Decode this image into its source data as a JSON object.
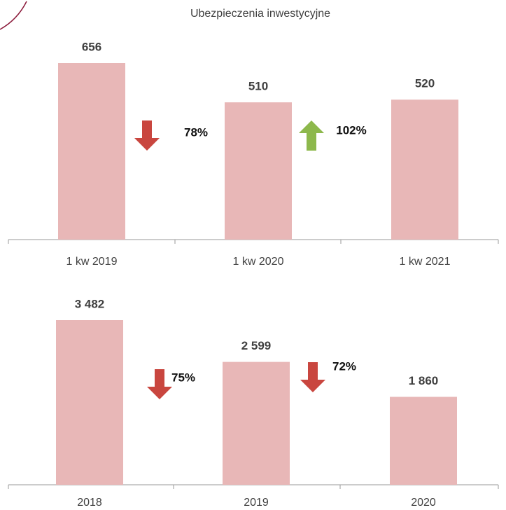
{
  "chart_data": [
    {
      "type": "bar",
      "title": "Ubezpieczenia inwestycyjne",
      "categories": [
        "1 kw 2019",
        "1 kw 2020",
        "1 kw 2021"
      ],
      "values": [
        656,
        510,
        520
      ],
      "color": "#e8b7b7",
      "annotations": [
        {
          "text": "78%",
          "arrow": "down",
          "color": "#c9463f"
        },
        {
          "text": "102%",
          "arrow": "up",
          "color": "#8db84c"
        }
      ]
    },
    {
      "type": "bar",
      "categories": [
        "2018",
        "2019",
        "2020"
      ],
      "values": [
        3482,
        2599,
        1860
      ],
      "value_labels": [
        "3 482",
        "2 599",
        "1 860"
      ],
      "color": "#e8b7b7",
      "annotations": [
        {
          "text": "75%",
          "arrow": "down",
          "color": "#c9463f"
        },
        {
          "text": "72%",
          "arrow": "down",
          "color": "#c9463f"
        }
      ]
    }
  ]
}
